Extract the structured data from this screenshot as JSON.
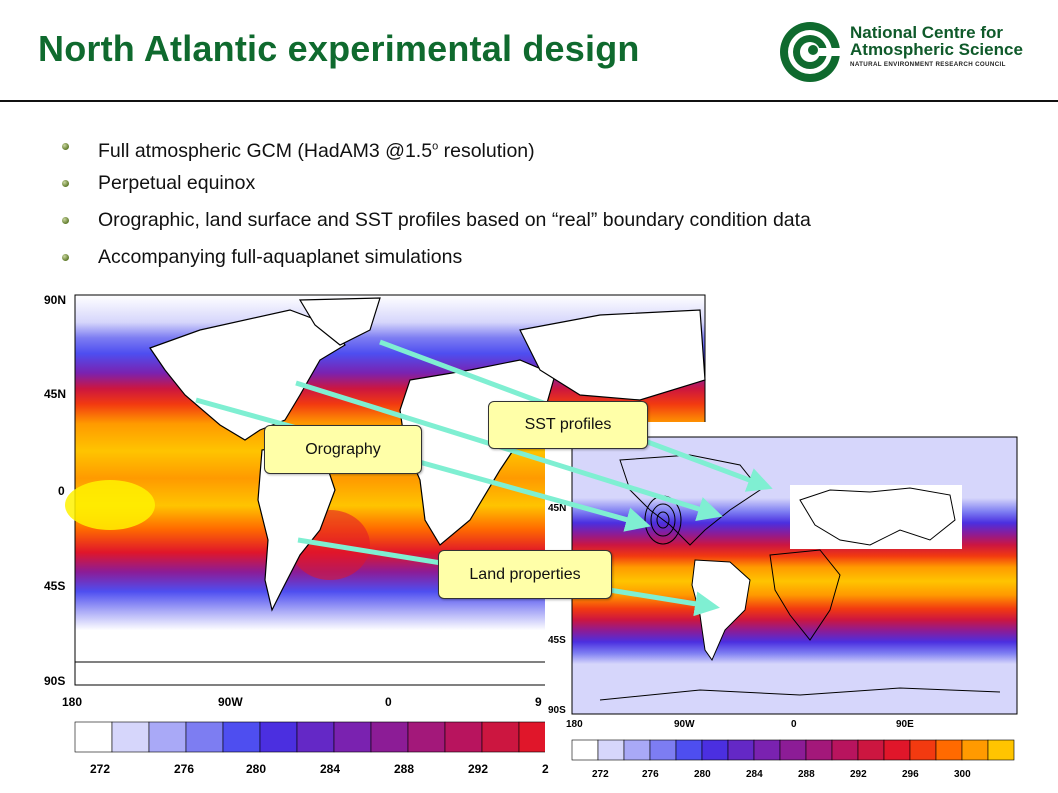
{
  "slide": {
    "title": "North Atlantic experimental design"
  },
  "logo": {
    "line1": "National Centre for",
    "line2": "Atmospheric Science",
    "line3": "NATURAL ENVIRONMENT RESEARCH COUNCIL"
  },
  "bullets": [
    {
      "text_before": "Full atmospheric GCM (HadAM3 @1.5",
      "sup": "o",
      "text_after": " resolution)"
    },
    {
      "text": "Perpetual equinox"
    },
    {
      "text": "Orographic, land surface and SST profiles based on “real” boundary condition data"
    },
    {
      "text": "Accompanying full-aquaplanet simulations"
    }
  ],
  "left_map": {
    "lat_labels": [
      "90N",
      "45N",
      "0",
      "45S",
      "90S"
    ],
    "lon_labels": [
      "180",
      "90W",
      "0",
      "9"
    ],
    "colorbar_labels": [
      "272",
      "276",
      "280",
      "284",
      "288",
      "292",
      "2"
    ]
  },
  "right_map": {
    "lat_labels": [
      "45N",
      "45S",
      "90S"
    ],
    "lon_labels": [
      "180",
      "90W",
      "0",
      "90E"
    ],
    "colorbar_labels": [
      "272",
      "276",
      "280",
      "284",
      "288",
      "292",
      "296",
      "300"
    ]
  },
  "callouts": {
    "sst": "SST profiles",
    "orography": "Orography",
    "land": "Land properties"
  },
  "colors": {
    "title": "#0f6a2e",
    "arrow": "#7fefd2",
    "callout_fill": "#ffffa8",
    "palette": [
      "#ffffff",
      "#d6d6fb",
      "#a9a9f7",
      "#7d7df2",
      "#4e4ef0",
      "#4b2fe0",
      "#6428c6",
      "#7a22b0",
      "#8c1c96",
      "#a3187a",
      "#b8145e",
      "#cc1640",
      "#e0162a",
      "#f23a10",
      "#ff6a00",
      "#ff9a00",
      "#ffc400",
      "#fff200"
    ]
  }
}
